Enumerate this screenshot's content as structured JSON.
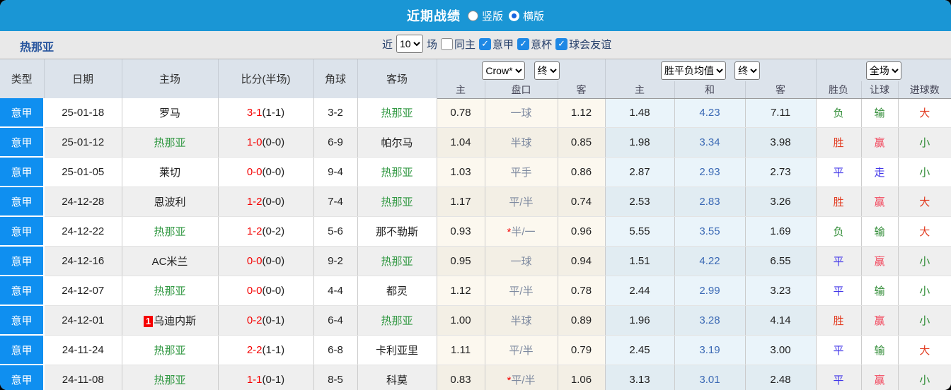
{
  "topbar": {
    "title": "近期战绩",
    "options": [
      {
        "label": "竖版",
        "selected": false
      },
      {
        "label": "横版",
        "selected": true
      }
    ]
  },
  "filter": {
    "team": "热那亚",
    "near": "近",
    "count": "10",
    "games": "场",
    "checks": [
      {
        "label": "同主",
        "checked": false
      },
      {
        "label": "意甲",
        "checked": true
      },
      {
        "label": "意杯",
        "checked": true
      },
      {
        "label": "球会友谊",
        "checked": true
      }
    ]
  },
  "header": {
    "cols": [
      "类型",
      "日期",
      "主场",
      "比分(半场)",
      "角球",
      "客场"
    ],
    "odds_select": "Crow*",
    "odds_final": "终",
    "avg_select": "胜平负均值",
    "avg_final": "终",
    "scope_select": "全场",
    "sub": [
      "主",
      "盘口",
      "客",
      "主",
      "和",
      "客",
      "胜负",
      "让球",
      "进球数"
    ]
  },
  "colors": {
    "accent_bar": "#1a96d5",
    "type_bg": "#0f8ff0",
    "team_green": "#339944",
    "score_red": "#f40000",
    "avg_blue": "#3c6ab5",
    "win_red": "#e23b20",
    "handicap_pink": "#f2485e",
    "lose_green": "#2e8b34",
    "draw_blue": "#4136e8"
  },
  "rows": [
    {
      "type": "意甲",
      "date": "25-01-18",
      "home": "罗马",
      "home_team": false,
      "badge": "",
      "score": "3-1",
      "half": "(1-1)",
      "corner": "3-2",
      "away": "热那亚",
      "away_team": true,
      "o1": "0.78",
      "pan": "一球",
      "star": false,
      "o2": "1.12",
      "a1": "1.48",
      "a2": "4.23",
      "a3": "7.11",
      "res": [
        [
          "负",
          "g"
        ],
        [
          "输",
          "g"
        ],
        [
          "大",
          "r"
        ]
      ]
    },
    {
      "type": "意甲",
      "date": "25-01-12",
      "home": "热那亚",
      "home_team": true,
      "badge": "",
      "score": "1-0",
      "half": "(0-0)",
      "corner": "6-9",
      "away": "帕尔马",
      "away_team": false,
      "o1": "1.04",
      "pan": "半球",
      "star": false,
      "o2": "0.85",
      "a1": "1.98",
      "a2": "3.34",
      "a3": "3.98",
      "res": [
        [
          "胜",
          "r"
        ],
        [
          "赢",
          "p"
        ],
        [
          "小",
          "g"
        ]
      ]
    },
    {
      "type": "意甲",
      "date": "25-01-05",
      "home": "莱切",
      "home_team": false,
      "badge": "",
      "score": "0-0",
      "half": "(0-0)",
      "corner": "9-4",
      "away": "热那亚",
      "away_team": true,
      "o1": "1.03",
      "pan": "平手",
      "star": false,
      "o2": "0.86",
      "a1": "2.87",
      "a2": "2.93",
      "a3": "2.73",
      "res": [
        [
          "平",
          "b"
        ],
        [
          "走",
          "b"
        ],
        [
          "小",
          "g"
        ]
      ]
    },
    {
      "type": "意甲",
      "date": "24-12-28",
      "home": "恩波利",
      "home_team": false,
      "badge": "",
      "score": "1-2",
      "half": "(0-0)",
      "corner": "7-4",
      "away": "热那亚",
      "away_team": true,
      "o1": "1.17",
      "pan": "平/半",
      "star": false,
      "o2": "0.74",
      "a1": "2.53",
      "a2": "2.83",
      "a3": "3.26",
      "res": [
        [
          "胜",
          "r"
        ],
        [
          "赢",
          "p"
        ],
        [
          "大",
          "r"
        ]
      ]
    },
    {
      "type": "意甲",
      "date": "24-12-22",
      "home": "热那亚",
      "home_team": true,
      "badge": "",
      "score": "1-2",
      "half": "(0-2)",
      "corner": "5-6",
      "away": "那不勒斯",
      "away_team": false,
      "o1": "0.93",
      "pan": "半/一",
      "star": true,
      "o2": "0.96",
      "a1": "5.55",
      "a2": "3.55",
      "a3": "1.69",
      "res": [
        [
          "负",
          "g"
        ],
        [
          "输",
          "g"
        ],
        [
          "大",
          "r"
        ]
      ]
    },
    {
      "type": "意甲",
      "date": "24-12-16",
      "home": "AC米兰",
      "home_team": false,
      "badge": "",
      "score": "0-0",
      "half": "(0-0)",
      "corner": "9-2",
      "away": "热那亚",
      "away_team": true,
      "o1": "0.95",
      "pan": "一球",
      "star": false,
      "o2": "0.94",
      "a1": "1.51",
      "a2": "4.22",
      "a3": "6.55",
      "res": [
        [
          "平",
          "b"
        ],
        [
          "赢",
          "p"
        ],
        [
          "小",
          "g"
        ]
      ]
    },
    {
      "type": "意甲",
      "date": "24-12-07",
      "home": "热那亚",
      "home_team": true,
      "badge": "",
      "score": "0-0",
      "half": "(0-0)",
      "corner": "4-4",
      "away": "都灵",
      "away_team": false,
      "o1": "1.12",
      "pan": "平/半",
      "star": false,
      "o2": "0.78",
      "a1": "2.44",
      "a2": "2.99",
      "a3": "3.23",
      "res": [
        [
          "平",
          "b"
        ],
        [
          "输",
          "g"
        ],
        [
          "小",
          "g"
        ]
      ]
    },
    {
      "type": "意甲",
      "date": "24-12-01",
      "home": "乌迪内斯",
      "home_team": false,
      "badge": "1",
      "score": "0-2",
      "half": "(0-1)",
      "corner": "6-4",
      "away": "热那亚",
      "away_team": true,
      "o1": "1.00",
      "pan": "半球",
      "star": false,
      "o2": "0.89",
      "a1": "1.96",
      "a2": "3.28",
      "a3": "4.14",
      "res": [
        [
          "胜",
          "r"
        ],
        [
          "赢",
          "p"
        ],
        [
          "小",
          "g"
        ]
      ]
    },
    {
      "type": "意甲",
      "date": "24-11-24",
      "home": "热那亚",
      "home_team": true,
      "badge": "",
      "score": "2-2",
      "half": "(1-1)",
      "corner": "6-8",
      "away": "卡利亚里",
      "away_team": false,
      "o1": "1.11",
      "pan": "平/半",
      "star": false,
      "o2": "0.79",
      "a1": "2.45",
      "a2": "3.19",
      "a3": "3.00",
      "res": [
        [
          "平",
          "b"
        ],
        [
          "输",
          "g"
        ],
        [
          "大",
          "r"
        ]
      ]
    },
    {
      "type": "意甲",
      "date": "24-11-08",
      "home": "热那亚",
      "home_team": true,
      "badge": "",
      "score": "1-1",
      "half": "(0-1)",
      "corner": "8-5",
      "away": "科莫",
      "away_team": false,
      "o1": "0.83",
      "pan": "平/半",
      "star": true,
      "o2": "1.06",
      "a1": "3.13",
      "a2": "3.01",
      "a3": "2.48",
      "res": [
        [
          "平",
          "b"
        ],
        [
          "赢",
          "p"
        ],
        [
          "小",
          "g"
        ]
      ]
    }
  ]
}
